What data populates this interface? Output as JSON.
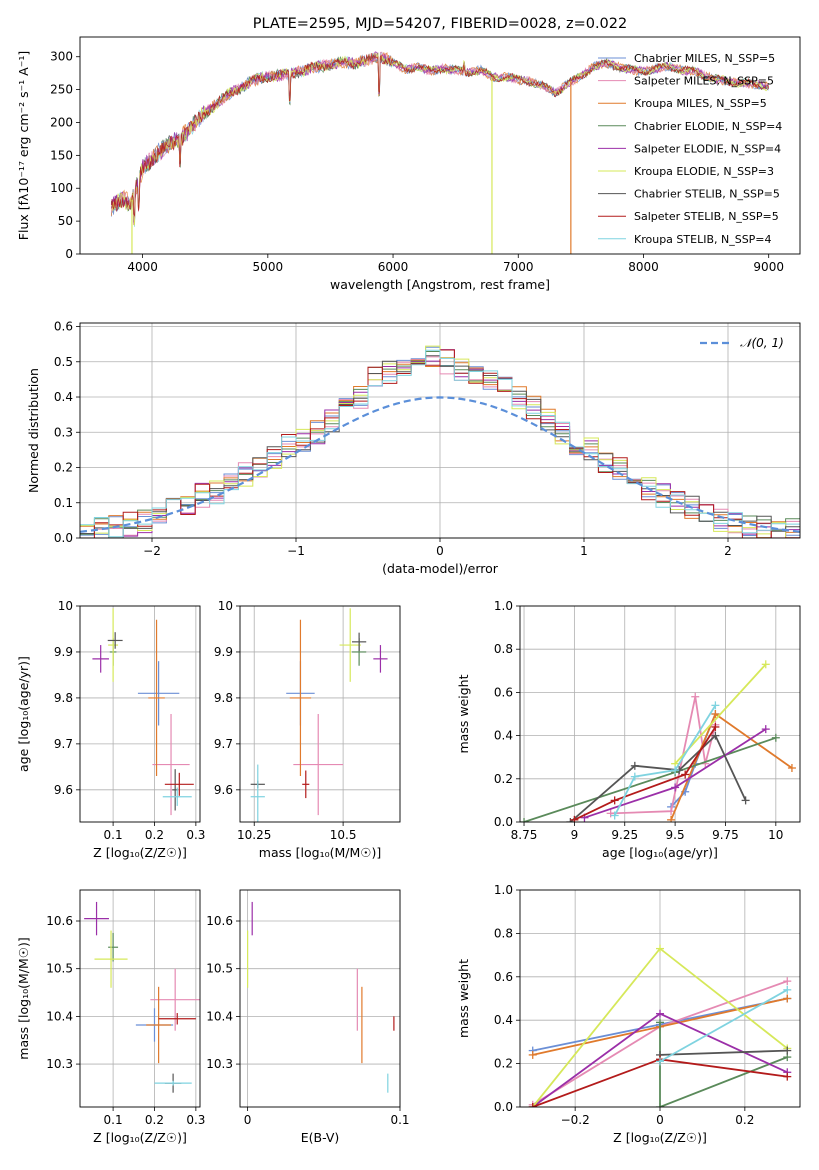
{
  "colors": [
    "#6b8fd6",
    "#e58ab3",
    "#e07a2c",
    "#5a8a5a",
    "#9b2fa8",
    "#d6e85a",
    "#555555",
    "#b31b1b",
    "#7fd3e0"
  ],
  "chart_data": [
    {
      "type": "line",
      "title": "PLATE=2595, MJD=54207, FIBERID=0028, z=0.022",
      "xlabel": "wavelength [Angstrom, rest frame]",
      "ylabel": "Flux [fλ10⁻¹⁷ erg cm⁻² s⁻¹ A⁻¹]",
      "xlim": [
        3500,
        9250
      ],
      "ylim": [
        0,
        330
      ],
      "xticks": [
        4000,
        5000,
        6000,
        7000,
        8000,
        9000
      ],
      "yticks": [
        0,
        50,
        100,
        150,
        200,
        250,
        300
      ],
      "legend_position": "top-right",
      "legend": [
        "Chabrier MILES, N_SSP=5",
        "Salpeter MILES, N_SSP=5",
        "Kroupa MILES, N_SSP=5",
        "Chabrier ELODIE, N_SSP=4",
        "Salpeter ELODIE, N_SSP=4",
        "Kroupa ELODIE, N_SSP=3",
        "Chabrier STELIB, N_SSP=5",
        "Salpeter STELIB, N_SSP=5",
        "Kroupa STELIB, N_SSP=4"
      ],
      "continuum": {
        "x": [
          3750,
          3800,
          3850,
          3900,
          3950,
          4000,
          4100,
          4200,
          4300,
          4400,
          4500,
          4600,
          4700,
          4800,
          4900,
          5000,
          5100,
          5200,
          5300,
          5400,
          5500,
          5600,
          5700,
          5800,
          5900,
          6000,
          6100,
          6200,
          6300,
          6400,
          6500,
          6600,
          6700,
          6800,
          6900,
          7000,
          7100,
          7200,
          7300,
          7400,
          7500,
          7600,
          7700,
          7800,
          7900,
          8000,
          8100,
          8200,
          8300,
          8400,
          8500,
          8600,
          8700,
          8800,
          8900,
          9000
        ],
        "y": [
          70,
          80,
          85,
          75,
          100,
          130,
          150,
          165,
          175,
          195,
          215,
          230,
          245,
          255,
          265,
          270,
          272,
          275,
          280,
          285,
          288,
          292,
          290,
          295,
          300,
          292,
          280,
          285,
          278,
          282,
          280,
          276,
          280,
          268,
          270,
          265,
          262,
          255,
          245,
          260,
          270,
          285,
          290,
          285,
          280,
          278,
          282,
          285,
          280,
          278,
          270,
          265,
          262,
          260,
          258,
          255
        ]
      },
      "drops": [
        {
          "x": 3915,
          "y": 0
        },
        {
          "x": 6790,
          "y": 0
        },
        {
          "x": 7420,
          "y": 0
        }
      ]
    },
    {
      "type": "step",
      "xlabel": "(data-model)/error",
      "ylabel": "Normed distribution",
      "xlim": [
        -2.5,
        2.5
      ],
      "ylim": [
        0,
        0.61
      ],
      "xticks": [
        -2,
        -1,
        0,
        1,
        2
      ],
      "yticks": [
        0.0,
        0.1,
        0.2,
        0.3,
        0.4,
        0.5,
        0.6
      ],
      "legend": [
        "𝒩(0, 1)"
      ],
      "legend_position": "top-right",
      "bin_start": -2.5,
      "bin_width": 0.1,
      "base_hist": [
        0.02,
        0.03,
        0.03,
        0.04,
        0.05,
        0.06,
        0.08,
        0.1,
        0.12,
        0.13,
        0.15,
        0.18,
        0.2,
        0.23,
        0.26,
        0.28,
        0.3,
        0.33,
        0.37,
        0.4,
        0.45,
        0.47,
        0.48,
        0.5,
        0.52,
        0.5,
        0.48,
        0.47,
        0.45,
        0.44,
        0.4,
        0.37,
        0.34,
        0.3,
        0.27,
        0.25,
        0.22,
        0.2,
        0.17,
        0.14,
        0.12,
        0.1,
        0.09,
        0.07,
        0.05,
        0.04,
        0.03,
        0.03,
        0.02,
        0.02
      ]
    },
    {
      "type": "scatter",
      "xlabel": "Z [log₁₀(Z/Z☉)]",
      "ylabel": "age  [log₁₀(age/yr)]",
      "xlim": [
        0.02,
        0.31
      ],
      "ylim": [
        9.53,
        10.0
      ],
      "xticks": [
        0.1,
        0.2,
        0.3
      ],
      "yticks": [
        9.6,
        9.7,
        9.8,
        9.9,
        10.0
      ],
      "points": [
        {
          "x": 0.21,
          "y": 9.81,
          "ex": 0.05,
          "ey": 0.07,
          "c": 0
        },
        {
          "x": 0.24,
          "y": 9.655,
          "ex": 0.045,
          "ey": 0.11,
          "c": 1
        },
        {
          "x": 0.205,
          "y": 9.8,
          "ex": 0.02,
          "ey": 0.17,
          "c": 2
        },
        {
          "x": 0.1,
          "y": 9.9,
          "ex": 0.008,
          "ey": 0.03,
          "c": 3
        },
        {
          "x": 0.07,
          "y": 9.885,
          "ex": 0.02,
          "ey": 0.03,
          "c": 4
        },
        {
          "x": 0.1,
          "y": 9.915,
          "ex": 0.012,
          "ey": 0.08,
          "c": 5
        },
        {
          "x": 0.25,
          "y": 9.6,
          "ex": 0.007,
          "ey": 0.045,
          "c": 6
        },
        {
          "x": 0.26,
          "y": 9.612,
          "ex": 0.035,
          "ey": 0.025,
          "c": 7
        },
        {
          "x": 0.255,
          "y": 9.585,
          "ex": 0.035,
          "ey": 0.02,
          "c": 8
        },
        {
          "x": 0.105,
          "y": 9.925,
          "ex": 0.018,
          "ey": 0.018,
          "c": 6
        }
      ]
    },
    {
      "type": "scatter",
      "xlabel": "mass [log₁₀(M/M☉)]",
      "ylabel": "",
      "xlim": [
        10.21,
        10.66
      ],
      "ylim": [
        9.53,
        10.0
      ],
      "xticks": [
        10.25,
        10.5
      ],
      "yticks": [
        9.6,
        9.7,
        9.8,
        9.9,
        10.0
      ],
      "points": [
        {
          "x": 10.38,
          "y": 9.81,
          "ex": 0.04,
          "ey": 0.07,
          "c": 0
        },
        {
          "x": 10.43,
          "y": 9.655,
          "ex": 0.07,
          "ey": 0.11,
          "c": 1
        },
        {
          "x": 10.38,
          "y": 9.8,
          "ex": 0.03,
          "ey": 0.17,
          "c": 2
        },
        {
          "x": 10.545,
          "y": 9.9,
          "ex": 0.02,
          "ey": 0.03,
          "c": 3
        },
        {
          "x": 10.605,
          "y": 9.885,
          "ex": 0.02,
          "ey": 0.03,
          "c": 4
        },
        {
          "x": 10.52,
          "y": 9.915,
          "ex": 0.03,
          "ey": 0.08,
          "c": 5
        },
        {
          "x": 10.26,
          "y": 9.612,
          "ex": 0.02,
          "ey": 0.008,
          "c": 6
        },
        {
          "x": 10.395,
          "y": 9.612,
          "ex": 0.01,
          "ey": 0.03,
          "c": 7
        },
        {
          "x": 10.26,
          "y": 9.585,
          "ex": 0.02,
          "ey": 0.07,
          "c": 8
        },
        {
          "x": 10.545,
          "y": 9.922,
          "ex": 0.02,
          "ey": 0.02,
          "c": 6
        }
      ]
    },
    {
      "type": "line",
      "xlabel": "age  [log₁₀(age/yr)]",
      "ylabel": "mass weight",
      "xlim": [
        8.73,
        10.12
      ],
      "ylim": [
        0,
        1.0
      ],
      "xticks": [
        8.75,
        9.0,
        9.25,
        9.5,
        9.75,
        10.0
      ],
      "yticks": [
        0.0,
        0.2,
        0.4,
        0.6,
        0.8,
        1.0
      ],
      "series": [
        {
          "c": 0,
          "x": [
            9.48,
            9.55,
            9.6,
            9.7
          ],
          "y": [
            0.07,
            0.14,
            0.27,
            0.5
          ]
        },
        {
          "c": 1,
          "x": [
            9.18,
            9.48,
            9.6,
            9.65,
            9.7
          ],
          "y": [
            0.04,
            0.05,
            0.58,
            0.27,
            0.45
          ]
        },
        {
          "c": 2,
          "x": [
            9.48,
            9.7,
            10.08
          ],
          "y": [
            0.01,
            0.5,
            0.25
          ]
        },
        {
          "c": 3,
          "x": [
            8.75,
            9.5,
            10.0
          ],
          "y": [
            0.0,
            0.23,
            0.39
          ]
        },
        {
          "c": 4,
          "x": [
            9.05,
            9.5,
            9.95
          ],
          "y": [
            0.02,
            0.16,
            0.43
          ]
        },
        {
          "c": 5,
          "x": [
            9.5,
            9.95
          ],
          "y": [
            0.27,
            0.73
          ]
        },
        {
          "c": 6,
          "x": [
            8.98,
            9.3,
            9.52,
            9.7,
            9.85
          ],
          "y": [
            0.0,
            0.26,
            0.24,
            0.4,
            0.1
          ]
        },
        {
          "c": 7,
          "x": [
            9.0,
            9.2,
            9.55,
            9.7
          ],
          "y": [
            0.01,
            0.1,
            0.22,
            0.44
          ]
        },
        {
          "c": 8,
          "x": [
            9.2,
            9.3,
            9.5,
            9.7
          ],
          "y": [
            0.03,
            0.21,
            0.24,
            0.54
          ]
        }
      ]
    },
    {
      "type": "scatter",
      "xlabel": "Z [log₁₀(Z/Z☉)]",
      "ylabel": "mass [log₁₀(M/M☉)]",
      "xlim": [
        0.02,
        0.31
      ],
      "ylim": [
        10.21,
        10.665
      ],
      "xticks": [
        0.1,
        0.2,
        0.3
      ],
      "yticks": [
        10.3,
        10.4,
        10.5,
        10.6
      ],
      "points": [
        {
          "x": 0.2,
          "y": 10.382,
          "ex": 0.045,
          "ey": 0.035,
          "c": 0
        },
        {
          "x": 0.25,
          "y": 10.435,
          "ex": 0.06,
          "ey": 0.065,
          "c": 1
        },
        {
          "x": 0.21,
          "y": 10.382,
          "ex": 0.03,
          "ey": 0.08,
          "c": 2
        },
        {
          "x": 0.1,
          "y": 10.545,
          "ex": 0.012,
          "ey": 0.03,
          "c": 3
        },
        {
          "x": 0.06,
          "y": 10.605,
          "ex": 0.03,
          "ey": 0.035,
          "c": 4
        },
        {
          "x": 0.095,
          "y": 10.52,
          "ex": 0.04,
          "ey": 0.06,
          "c": 5
        },
        {
          "x": 0.245,
          "y": 10.26,
          "ex": 0.02,
          "ey": 0.02,
          "c": 6
        },
        {
          "x": 0.255,
          "y": 10.395,
          "ex": 0.045,
          "ey": 0.012,
          "c": 7
        },
        {
          "x": 0.245,
          "y": 10.26,
          "ex": 0.045,
          "ey": 0.005,
          "c": 8
        }
      ]
    },
    {
      "type": "scatter",
      "xlabel": "E(B-V)",
      "ylabel": "",
      "xlim": [
        -0.005,
        0.1
      ],
      "ylim": [
        10.21,
        10.665
      ],
      "xticks": [
        0.0,
        0.1
      ],
      "yticks": [
        10.3,
        10.4,
        10.5,
        10.6
      ],
      "points": [
        {
          "x": 0.072,
          "y": 10.435,
          "ex": 0.0,
          "ey": 0.065,
          "c": 1
        },
        {
          "x": 0.075,
          "y": 10.382,
          "ex": 0.0,
          "ey": 0.08,
          "c": 2
        },
        {
          "x": 0.003,
          "y": 10.605,
          "ex": 0.0,
          "ey": 0.035,
          "c": 4
        },
        {
          "x": 0.0,
          "y": 10.52,
          "ex": 0.0,
          "ey": 0.06,
          "c": 5
        },
        {
          "x": 0.096,
          "y": 10.385,
          "ex": 0.0,
          "ey": 0.015,
          "c": 7
        },
        {
          "x": 0.092,
          "y": 10.26,
          "ex": 0.0,
          "ey": 0.02,
          "c": 8
        }
      ]
    },
    {
      "type": "line",
      "xlabel": "Z [log₁₀(Z/Z☉)]",
      "ylabel": "mass weight",
      "xlim": [
        -0.33,
        0.33
      ],
      "ylim": [
        0,
        1.0
      ],
      "xticks": [
        -0.2,
        0.0,
        0.2
      ],
      "yticks": [
        0.0,
        0.2,
        0.4,
        0.6,
        0.8,
        1.0
      ],
      "series": [
        {
          "c": 0,
          "x": [
            -0.3,
            0.0,
            0.3
          ],
          "y": [
            0.26,
            0.38,
            0.5
          ]
        },
        {
          "c": 1,
          "x": [
            -0.3,
            0.0,
            0.3
          ],
          "y": [
            0.01,
            0.37,
            0.58
          ]
        },
        {
          "c": 2,
          "x": [
            -0.3,
            0.0,
            0.3
          ],
          "y": [
            0.24,
            0.37,
            0.5
          ]
        },
        {
          "c": 3,
          "x": [
            0.0,
            0.0,
            0.3
          ],
          "y": [
            0.39,
            0.0,
            0.23
          ]
        },
        {
          "c": 4,
          "x": [
            -0.3,
            0.0,
            0.3
          ],
          "y": [
            0.0,
            0.43,
            0.16
          ]
        },
        {
          "c": 5,
          "x": [
            -0.3,
            0.0,
            0.3
          ],
          "y": [
            0.0,
            0.73,
            0.27
          ]
        },
        {
          "c": 6,
          "x": [
            0.0,
            0.3
          ],
          "y": [
            0.24,
            0.26
          ]
        },
        {
          "c": 7,
          "x": [
            -0.3,
            0.0,
            0.3
          ],
          "y": [
            0.0,
            0.22,
            0.14
          ]
        },
        {
          "c": 8,
          "x": [
            0.0,
            0.3
          ],
          "y": [
            0.21,
            0.54
          ]
        }
      ]
    }
  ]
}
